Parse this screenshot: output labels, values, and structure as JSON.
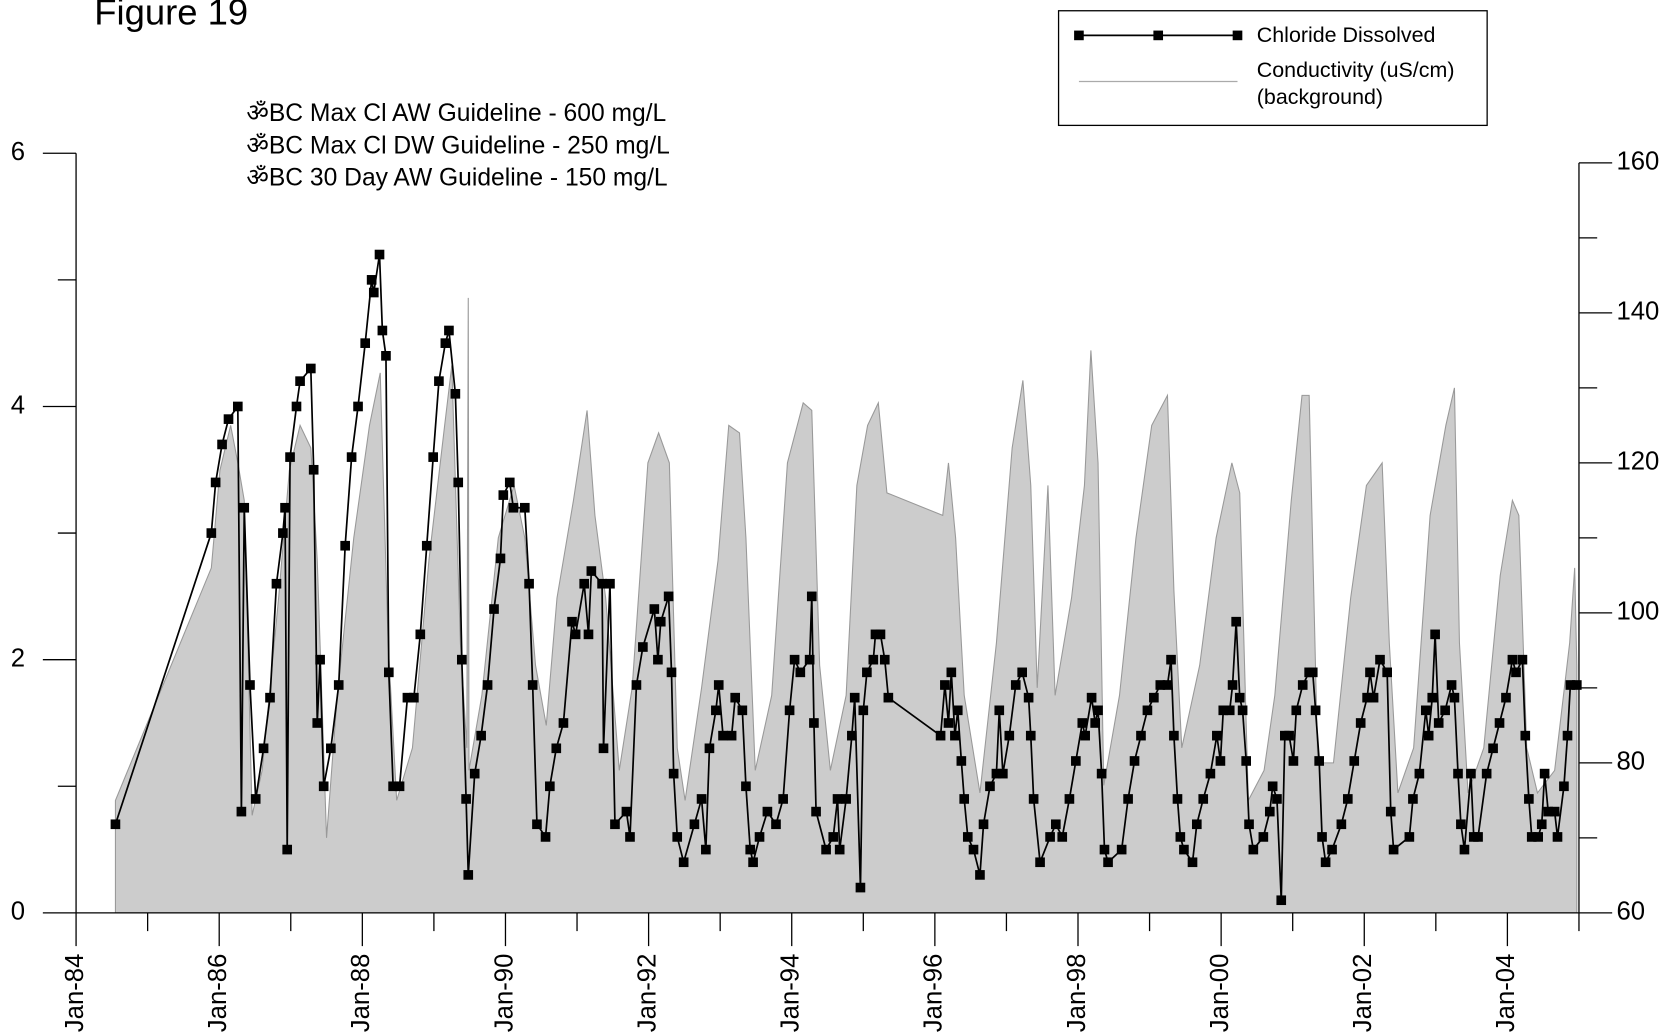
{
  "chart_data": {
    "type": "line",
    "title": "Figure 19",
    "annotations": [
      "ॐBC Max Cl AW Guideline - 600 mg/L",
      "ॐBC Max Cl DW Guideline - 250 mg/L",
      "ॐBC 30 Day AW Guideline - 150 mg/L"
    ],
    "legend": "upper right",
    "xlim": [
      1984,
      2005
    ],
    "xticks": [
      {
        "value": 1984,
        "label": "Jan-84"
      },
      {
        "value": 1986,
        "label": "Jan-86"
      },
      {
        "value": 1988,
        "label": "Jan-88"
      },
      {
        "value": 1990,
        "label": "Jan-90"
      },
      {
        "value": 1992,
        "label": "Jan-92"
      },
      {
        "value": 1994,
        "label": "Jan-94"
      },
      {
        "value": 1996,
        "label": "Jan-96"
      },
      {
        "value": 1998,
        "label": "Jan-98"
      },
      {
        "value": 2000,
        "label": "Jan-00"
      },
      {
        "value": 2002,
        "label": "Jan-02"
      },
      {
        "value": 2004,
        "label": "Jan-04"
      }
    ],
    "xminorticks": [
      1985,
      1987,
      1989,
      1991,
      1993,
      1995,
      1997,
      1999,
      2001,
      2003,
      2005
    ],
    "ylim": [
      0,
      6
    ],
    "yticks": [
      0,
      2,
      4,
      6
    ],
    "yminorticks": [
      1,
      3,
      5
    ],
    "y2lim": [
      60,
      160
    ],
    "y2ticks": [
      60,
      80,
      100,
      120,
      140,
      160
    ],
    "y2minorticks": [
      70,
      90,
      110,
      130,
      150
    ],
    "series": [
      {
        "name": "Conductivity (uS/cm) (background)",
        "style": "area",
        "axis": "y2",
        "color": "#cccccc",
        "x": [
          1984.55,
          1985.89,
          1986.01,
          1986.16,
          1986.26,
          1986.35,
          1986.46,
          1986.6,
          1986.83,
          1986.98,
          1987.13,
          1987.28,
          1987.37,
          1987.5,
          1987.65,
          1987.88,
          1988.1,
          1988.25,
          1988.36,
          1988.48,
          1988.7,
          1988.93,
          1989.15,
          1989.25,
          1989.37,
          1989.46,
          1989.48,
          1989.49,
          1989.67,
          1989.9,
          1990.12,
          1990.27,
          1990.42,
          1990.57,
          1990.72,
          1990.95,
          1991.14,
          1991.25,
          1991.4,
          1991.59,
          1991.77,
          1991.99,
          1992.14,
          1992.29,
          1992.4,
          1992.51,
          1992.74,
          1992.97,
          1993.12,
          1993.27,
          1993.36,
          1993.49,
          1993.72,
          1993.94,
          1994.16,
          1994.28,
          1994.39,
          1994.54,
          1994.76,
          1994.91,
          1995.06,
          1995.21,
          1995.33,
          1996.11,
          1996.19,
          1996.29,
          1996.41,
          1996.63,
          1996.86,
          1997.08,
          1997.23,
          1997.34,
          1997.43,
          1997.58,
          1997.68,
          1997.91,
          1998.09,
          1998.18,
          1998.28,
          1998.36,
          1998.58,
          1998.81,
          1999.03,
          1999.25,
          1999.34,
          1999.45,
          1999.7,
          1999.93,
          2000.15,
          2000.26,
          2000.38,
          2000.6,
          2000.75,
          2000.98,
          2001.13,
          2001.23,
          2001.35,
          2001.57,
          2001.81,
          2002.03,
          2002.25,
          2002.35,
          2002.47,
          2002.69,
          2002.92,
          2003.14,
          2003.26,
          2003.33,
          2003.45,
          2003.67,
          2003.9,
          2004.07,
          2004.16,
          2004.27,
          2004.42,
          2004.66,
          2004.87,
          2004.94,
          2004.97
        ],
        "values": [
          75,
          106,
          119,
          125,
          120,
          115,
          73,
          79,
          102,
          119,
          125,
          122,
          107,
          70,
          89,
          110,
          125,
          132,
          96,
          75,
          82,
          107,
          125,
          133,
          96,
          82,
          142,
          79,
          89,
          110,
          117,
          110,
          93,
          85,
          102,
          115,
          127,
          113,
          102,
          79,
          90,
          120,
          124,
          120,
          82,
          75,
          90,
          107,
          125,
          124,
          110,
          79,
          89,
          120,
          128,
          127,
          93,
          79,
          89,
          117,
          125,
          128,
          116,
          113,
          120,
          110,
          89,
          76,
          96,
          122,
          131,
          117,
          90,
          117,
          89,
          102,
          117,
          135,
          120,
          77,
          89,
          110,
          125,
          129,
          103,
          82,
          93,
          110,
          120,
          116,
          75,
          79,
          89,
          115,
          129,
          129,
          80,
          80,
          102,
          117,
          120,
          96,
          76,
          82,
          113,
          125,
          130,
          96,
          76,
          82,
          105,
          115,
          113,
          82,
          76,
          79,
          96,
          106,
          93
        ]
      },
      {
        "name": "Chloride Dissolved",
        "style": "line-markers",
        "axis": "y",
        "color": "#000000",
        "x": [
          1984.55,
          1985.89,
          1985.95,
          1986.04,
          1986.13,
          1986.26,
          1986.31,
          1986.35,
          1986.43,
          1986.51,
          1986.62,
          1986.71,
          1986.8,
          1986.89,
          1986.92,
          1986.95,
          1986.99,
          1987.08,
          1987.13,
          1987.28,
          1987.32,
          1987.37,
          1987.41,
          1987.46,
          1987.56,
          1987.67,
          1987.76,
          1987.85,
          1987.94,
          1988.04,
          1988.13,
          1988.16,
          1988.24,
          1988.28,
          1988.33,
          1988.37,
          1988.43,
          1988.52,
          1988.63,
          1988.72,
          1988.81,
          1988.9,
          1988.99,
          1989.07,
          1989.16,
          1989.21,
          1989.3,
          1989.34,
          1989.39,
          1989.45,
          1989.48,
          1989.57,
          1989.66,
          1989.75,
          1989.84,
          1989.93,
          1989.97,
          1990.06,
          1990.11,
          1990.27,
          1990.33,
          1990.38,
          1990.44,
          1990.56,
          1990.62,
          1990.71,
          1990.81,
          1990.93,
          1990.98,
          1991.1,
          1991.16,
          1991.2,
          1991.35,
          1991.37,
          1991.46,
          1991.53,
          1991.69,
          1991.74,
          1991.83,
          1991.92,
          1992.08,
          1992.13,
          1992.17,
          1992.28,
          1992.32,
          1992.35,
          1992.4,
          1992.49,
          1992.64,
          1992.74,
          1992.8,
          1992.85,
          1992.94,
          1992.98,
          1993.04,
          1993.16,
          1993.21,
          1993.31,
          1993.36,
          1993.42,
          1993.46,
          1993.55,
          1993.66,
          1993.78,
          1993.88,
          1993.97,
          1994.04,
          1994.12,
          1994.25,
          1994.28,
          1994.31,
          1994.34,
          1994.48,
          1994.58,
          1994.64,
          1994.67,
          1994.76,
          1994.84,
          1994.88,
          1994.96,
          1995.0,
          1995.05,
          1995.14,
          1995.17,
          1995.24,
          1995.3,
          1995.35,
          1996.08,
          1996.14,
          1996.19,
          1996.23,
          1996.28,
          1996.32,
          1996.37,
          1996.41,
          1996.46,
          1996.54,
          1996.63,
          1996.68,
          1996.77,
          1996.86,
          1996.9,
          1996.95,
          1997.04,
          1997.13,
          1997.22,
          1997.31,
          1997.34,
          1997.38,
          1997.47,
          1997.61,
          1997.69,
          1997.78,
          1997.88,
          1997.97,
          1998.06,
          1998.1,
          1998.19,
          1998.24,
          1998.28,
          1998.33,
          1998.37,
          1998.42,
          1998.61,
          1998.7,
          1998.79,
          1998.88,
          1998.97,
          1999.06,
          1999.15,
          1999.25,
          1999.3,
          1999.34,
          1999.39,
          1999.43,
          1999.48,
          1999.6,
          1999.66,
          1999.75,
          1999.85,
          1999.94,
          1999.99,
          2000.03,
          2000.12,
          2000.16,
          2000.21,
          2000.26,
          2000.3,
          2000.35,
          2000.39,
          2000.45,
          2000.59,
          2000.68,
          2000.72,
          2000.78,
          2000.84,
          2000.89,
          2000.95,
          2001.01,
          2001.05,
          2001.14,
          2001.23,
          2001.28,
          2001.32,
          2001.37,
          2001.41,
          2001.46,
          2001.55,
          2001.68,
          2001.77,
          2001.86,
          2001.95,
          2002.04,
          2002.08,
          2002.13,
          2002.22,
          2002.32,
          2002.37,
          2002.41,
          2002.63,
          2002.68,
          2002.77,
          2002.86,
          2002.9,
          2002.95,
          2002.99,
          2003.04,
          2003.13,
          2003.22,
          2003.26,
          2003.31,
          2003.35,
          2003.4,
          2003.49,
          2003.53,
          2003.59,
          2003.71,
          2003.8,
          2003.89,
          2003.98,
          2004.07,
          2004.12,
          2004.21,
          2004.25,
          2004.3,
          2004.34,
          2004.43,
          2004.48,
          2004.52,
          2004.57,
          2004.66,
          2004.7,
          2004.79,
          2004.84,
          2004.88,
          2004.97
        ],
        "values": [
          0.7,
          3.0,
          3.4,
          3.7,
          3.9,
          4.0,
          0.8,
          3.2,
          1.8,
          0.9,
          1.3,
          1.7,
          2.6,
          3.0,
          3.2,
          0.5,
          3.6,
          4.0,
          4.2,
          4.3,
          3.5,
          1.5,
          2.0,
          1.0,
          1.3,
          1.8,
          2.9,
          3.6,
          4.0,
          4.5,
          5.0,
          4.9,
          5.2,
          4.6,
          4.4,
          1.9,
          1.0,
          1.0,
          1.7,
          1.7,
          2.2,
          2.9,
          3.6,
          4.2,
          4.5,
          4.6,
          4.1,
          3.4,
          2.0,
          0.9,
          0.3,
          1.1,
          1.4,
          1.8,
          2.4,
          2.8,
          3.3,
          3.4,
          3.2,
          3.2,
          2.6,
          1.8,
          0.7,
          0.6,
          1.0,
          1.3,
          1.5,
          2.3,
          2.2,
          2.6,
          2.2,
          2.7,
          2.6,
          1.3,
          2.6,
          0.7,
          0.8,
          0.6,
          1.8,
          2.1,
          2.4,
          2.0,
          2.3,
          2.5,
          1.9,
          1.1,
          0.6,
          0.4,
          0.7,
          0.9,
          0.5,
          1.3,
          1.6,
          1.8,
          1.4,
          1.4,
          1.7,
          1.6,
          1.0,
          0.5,
          0.4,
          0.6,
          0.8,
          0.7,
          0.9,
          1.6,
          2.0,
          1.9,
          2.0,
          2.5,
          1.5,
          0.8,
          0.5,
          0.6,
          0.9,
          0.5,
          0.9,
          1.4,
          1.7,
          0.2,
          1.6,
          1.9,
          2.0,
          2.2,
          2.2,
          2.0,
          1.7,
          1.4,
          1.8,
          1.5,
          1.9,
          1.4,
          1.6,
          1.2,
          0.9,
          0.6,
          0.5,
          0.3,
          0.7,
          1.0,
          1.1,
          1.6,
          1.1,
          1.4,
          1.8,
          1.9,
          1.7,
          1.4,
          0.9,
          0.4,
          0.6,
          0.7,
          0.6,
          0.9,
          1.2,
          1.5,
          1.4,
          1.7,
          1.5,
          1.6,
          1.1,
          0.5,
          0.4,
          0.5,
          0.9,
          1.2,
          1.4,
          1.6,
          1.7,
          1.8,
          1.8,
          2.0,
          1.4,
          0.9,
          0.6,
          0.5,
          0.4,
          0.7,
          0.9,
          1.1,
          1.4,
          1.2,
          1.6,
          1.6,
          1.8,
          2.3,
          1.7,
          1.6,
          1.2,
          0.7,
          0.5,
          0.6,
          0.8,
          1.0,
          0.9,
          0.1,
          1.4,
          1.4,
          1.2,
          1.6,
          1.8,
          1.9,
          1.9,
          1.6,
          1.2,
          0.6,
          0.4,
          0.5,
          0.7,
          0.9,
          1.2,
          1.5,
          1.7,
          1.9,
          1.7,
          2.0,
          1.9,
          0.8,
          0.5,
          0.6,
          0.9,
          1.1,
          1.6,
          1.4,
          1.7,
          2.2,
          1.5,
          1.6,
          1.8,
          1.7,
          1.1,
          0.7,
          0.5,
          1.1,
          0.6,
          0.6,
          1.1,
          1.3,
          1.5,
          1.7,
          2.0,
          1.9,
          2.0,
          1.4,
          0.9,
          0.6,
          0.6,
          0.7,
          1.1,
          0.8,
          0.8,
          0.6,
          1.0,
          1.4,
          1.8,
          1.8
        ]
      }
    ]
  }
}
